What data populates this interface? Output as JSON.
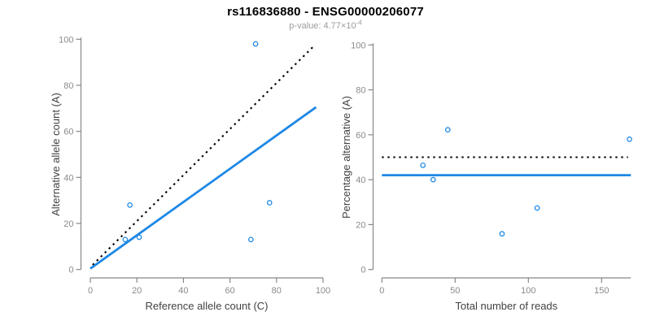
{
  "header": {
    "title": "rs116836880 - ENSG00000206077",
    "p_value_text": "p-value: 4.77×10",
    "p_value_exponent": "-4"
  },
  "colors": {
    "accent_blue": "#1E88E5",
    "line_black": "#000000",
    "axis_gray": "#888888",
    "tick_label_gray": "#8a8a8a",
    "axis_title_gray": "#424242",
    "subtitle_gray": "#9b9b9b",
    "background": "#ffffff"
  },
  "chart_data": [
    {
      "type": "scatter",
      "xlabel": "Reference allele count (C)",
      "ylabel": "Alternative allele count (A)",
      "xlim": [
        0,
        100
      ],
      "ylim": [
        0,
        100
      ],
      "xticks": [
        0,
        20,
        40,
        60,
        80,
        100
      ],
      "yticks": [
        0,
        20,
        40,
        60,
        80,
        100
      ],
      "grid": false,
      "legend": false,
      "points": [
        [
          15,
          13
        ],
        [
          17,
          28
        ],
        [
          21,
          14
        ],
        [
          69,
          13
        ],
        [
          71,
          98
        ],
        [
          77,
          29
        ]
      ],
      "lines": [
        {
          "name": "identity-line",
          "style": "dotted",
          "color": "#000000",
          "x1": 1,
          "y1": 2,
          "x2": 96,
          "y2": 97
        },
        {
          "name": "fit-line",
          "style": "solid",
          "color": "#1E88E5",
          "x1": 0,
          "y1": 0.4,
          "x2": 97,
          "y2": 70.5
        }
      ]
    },
    {
      "type": "scatter",
      "xlabel": "Total number of reads",
      "ylabel": "Percentage alternative (A)",
      "xlim": [
        0,
        170
      ],
      "ylim": [
        0,
        100
      ],
      "xticks": [
        0,
        50,
        100,
        150
      ],
      "yticks": [
        0,
        20,
        40,
        60,
        80,
        100
      ],
      "grid": false,
      "legend": false,
      "points": [
        [
          28,
          46.4
        ],
        [
          35,
          40.0
        ],
        [
          45,
          62.2
        ],
        [
          82,
          15.9
        ],
        [
          106,
          27.4
        ],
        [
          169,
          58.0
        ]
      ],
      "lines": [
        {
          "name": "expected-50pct-line",
          "style": "dotted",
          "color": "#000000",
          "x1": 0,
          "y1": 50,
          "x2": 168,
          "y2": 50
        },
        {
          "name": "mean-pct-line",
          "style": "solid",
          "color": "#1E88E5",
          "x1": 0,
          "y1": 42,
          "x2": 170,
          "y2": 42
        }
      ]
    }
  ]
}
